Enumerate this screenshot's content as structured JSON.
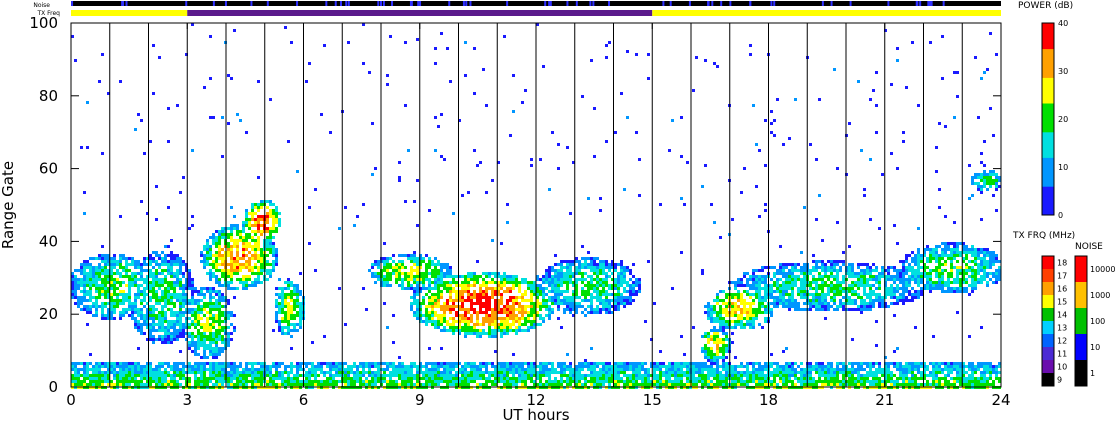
{
  "chart_data": {
    "type": "heatmap",
    "title": "",
    "xlabel": "UT hours",
    "ylabel": "Range Gate",
    "xlim": [
      0,
      24
    ],
    "ylim": [
      0,
      100
    ],
    "x_ticks": [
      "0",
      "3",
      "6",
      "9",
      "12",
      "15",
      "18",
      "21",
      "24"
    ],
    "y_ticks": [
      "0",
      "20",
      "40",
      "60",
      "80",
      "100"
    ],
    "grid": "vertical lines every hour",
    "power_colorbar": {
      "title": "POWER (dB)",
      "range": [
        0,
        40
      ],
      "ticks": [
        "0",
        "10",
        "20",
        "30",
        "40"
      ],
      "colors": [
        "#1a1aff",
        "#0096ff",
        "#00e0e0",
        "#00e000",
        "#ffff00",
        "#ffa000",
        "#ff0000"
      ]
    },
    "txfreq_colorbar": {
      "title": "TX FRQ (MHz)",
      "ticks": [
        "9",
        "10",
        "11",
        "12",
        "13",
        "14",
        "15",
        "16",
        "17",
        "18"
      ],
      "colors": [
        "#000000",
        "#6a0dad",
        "#4b2bd4",
        "#0064ff",
        "#00d0ff",
        "#00c000",
        "#ffff00",
        "#ffa000",
        "#ff4000",
        "#ff0000"
      ]
    },
    "noise_colorbar": {
      "title": "NOISE",
      "ticks": [
        "1",
        "10",
        "100",
        "1000",
        "10000"
      ],
      "colors": [
        "#000000",
        "#0000ff",
        "#00c000",
        "#ffc000",
        "#ff0000"
      ]
    },
    "top_bars": {
      "noise_label": "Noise",
      "txfreq_label": "TX Freq",
      "txfreq_segments": [
        {
          "start": 0,
          "end": 3,
          "color": "#ffff00"
        },
        {
          "start": 3,
          "end": 15,
          "color": "#5b1a8c"
        },
        {
          "start": 15,
          "end": 24,
          "color": "#ffff00"
        }
      ]
    },
    "blobs": [
      {
        "cx": 10.6,
        "cy": 23,
        "rx": 1.9,
        "ry": 9,
        "level": 0.95
      },
      {
        "cx": 17.2,
        "cy": 22,
        "rx": 0.9,
        "ry": 6,
        "level": 0.7
      },
      {
        "cx": 4.3,
        "cy": 36,
        "rx": 1.0,
        "ry": 9,
        "level": 0.8
      },
      {
        "cx": 4.9,
        "cy": 46,
        "rx": 0.5,
        "ry": 6,
        "level": 0.9
      },
      {
        "cx": 3.5,
        "cy": 18,
        "rx": 0.7,
        "ry": 10,
        "level": 0.55
      },
      {
        "cx": 1.0,
        "cy": 28,
        "rx": 1.1,
        "ry": 9,
        "level": 0.5
      },
      {
        "cx": 2.3,
        "cy": 25,
        "rx": 0.9,
        "ry": 13,
        "level": 0.45
      },
      {
        "cx": 8.7,
        "cy": 32,
        "rx": 1.1,
        "ry": 5,
        "level": 0.6
      },
      {
        "cx": 13.3,
        "cy": 28,
        "rx": 1.4,
        "ry": 8,
        "level": 0.45
      },
      {
        "cx": 16.6,
        "cy": 12,
        "rx": 0.4,
        "ry": 5,
        "level": 0.7
      },
      {
        "cx": 19.5,
        "cy": 28,
        "rx": 2.6,
        "ry": 7,
        "level": 0.45
      },
      {
        "cx": 22.7,
        "cy": 33,
        "rx": 1.4,
        "ry": 7,
        "level": 0.5
      },
      {
        "cx": 5.6,
        "cy": 22,
        "rx": 0.4,
        "ry": 8,
        "level": 0.6
      },
      {
        "cx": 23.6,
        "cy": 57,
        "rx": 0.4,
        "ry": 3,
        "level": 0.5
      }
    ],
    "ground_scatter": {
      "range_max": 7,
      "level": 0.55
    }
  }
}
